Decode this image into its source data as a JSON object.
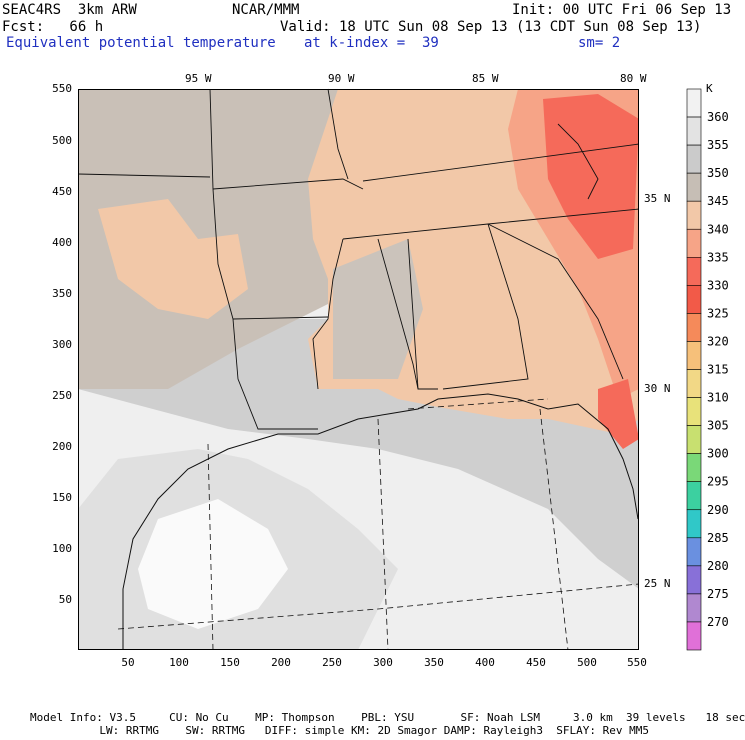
{
  "header": {
    "model": "SEAC4RS  3km ARW",
    "center": "NCAR/MMM",
    "init": "Init: 00 UTC Fri 06 Sep 13",
    "fcst": "Fcst:   66 h",
    "valid": "Valid: 18 UTC Sun 08 Sep 13 (13 CDT Sun 08 Sep 13)",
    "field": "Equivalent potential temperature",
    "level": "at k-index =  39",
    "smooth": "sm= 2"
  },
  "axes": {
    "x_ticks": [
      "50",
      "100",
      "150",
      "200",
      "250",
      "300",
      "350",
      "400",
      "450",
      "500",
      "550"
    ],
    "y_ticks": [
      "550",
      "500",
      "450",
      "400",
      "350",
      "300",
      "250",
      "200",
      "150",
      "100",
      "50"
    ],
    "lon_labels": [
      "95 W",
      "90 W",
      "85 W",
      "80 W"
    ],
    "lat_labels": [
      "35 N",
      "30 N",
      "25 N"
    ]
  },
  "colorbar": {
    "unit": "K",
    "levels": [
      "360",
      "355",
      "350",
      "345",
      "340",
      "335",
      "330",
      "325",
      "320",
      "315",
      "310",
      "305",
      "300",
      "295",
      "290",
      "285",
      "280",
      "275",
      "270"
    ],
    "colors": [
      "#f2f2f2",
      "#e3e3e3",
      "#cbcbcb",
      "#c6beb5",
      "#f2c8a8",
      "#f6a487",
      "#f56a5a",
      "#f25a48",
      "#f58a5a",
      "#f6c07a",
      "#f2d886",
      "#e8e27a",
      "#c8e070",
      "#7ad878",
      "#3cd0a0",
      "#30c8c8",
      "#6a90e0",
      "#8870d8",
      "#b088d0",
      "#e070d8"
    ]
  },
  "footer": {
    "line1": "Model Info: V3.5     CU: No Cu    MP: Thompson    PBL: YSU       SF: Noah LSM     3.0 km  39 levels   18 sec",
    "line2": "               LW: RRTMG    SW: RRTMG   DIFF: simple KM: 2D Smagor DAMP: Rayleigh3  SFLAY: Rev MM5"
  }
}
